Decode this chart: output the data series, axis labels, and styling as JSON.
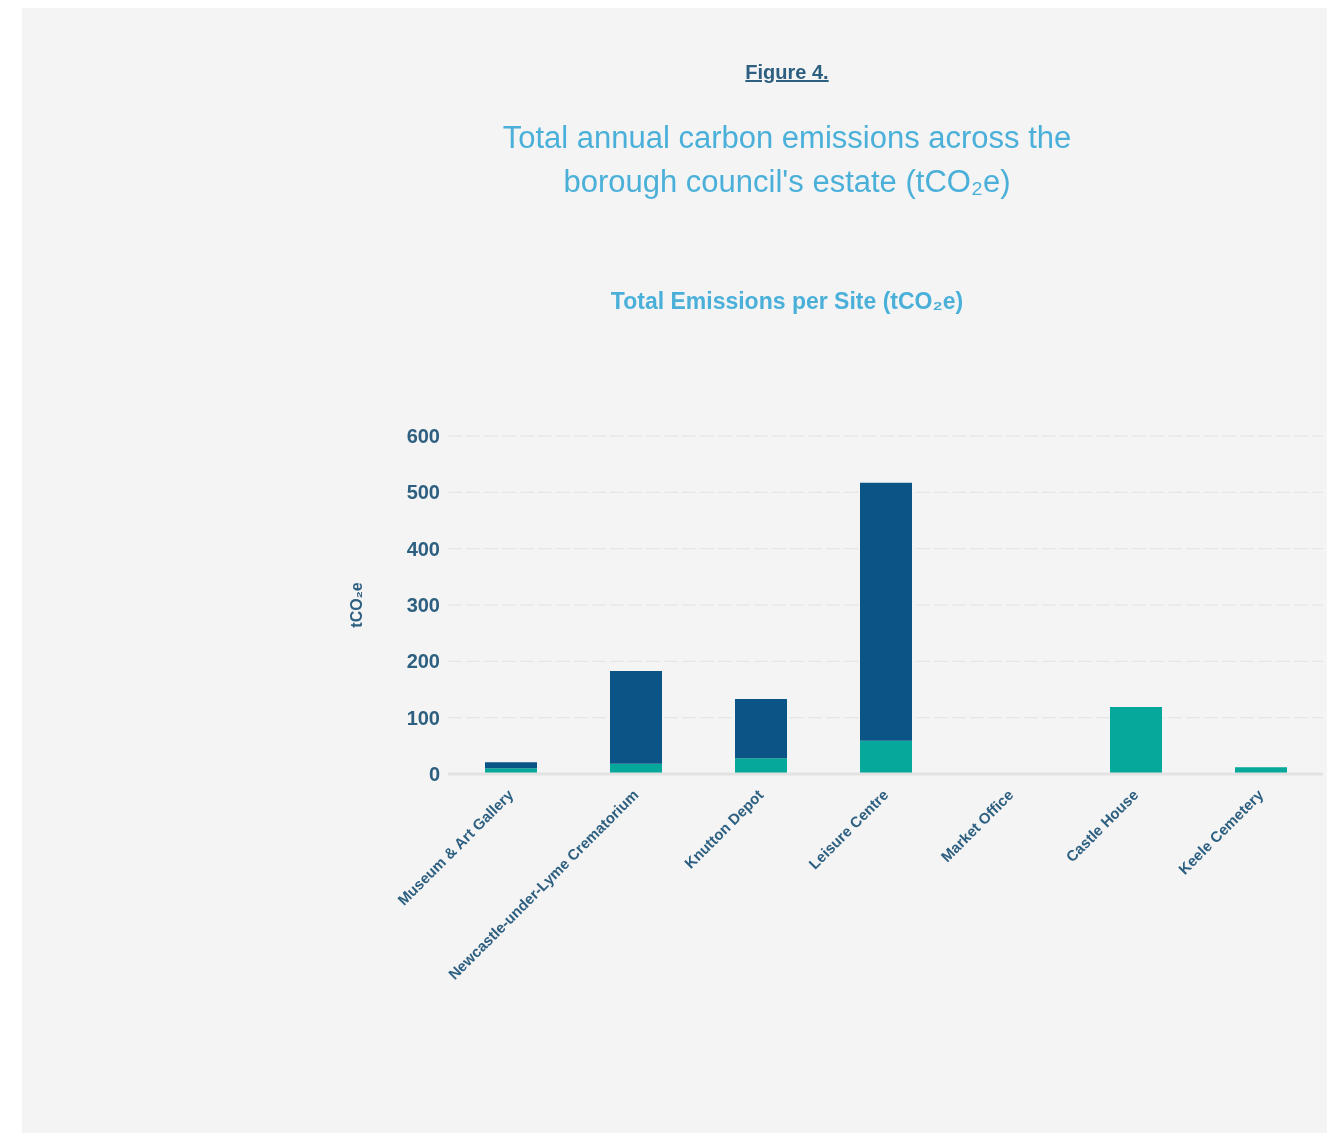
{
  "chart_data": {
    "type": "bar",
    "title": "Total annual carbon emissions across the borough council's estate (tCO₂e)",
    "subtitle": "Total Emissions per Site (tCO₂e)",
    "annotations": [
      "Figure 4."
    ],
    "ylabel": "tCO₂e",
    "categories": [
      "Museum & Art Gallery",
      "Newcastle-under-Lyme Crematorium",
      "Knutton Depot",
      "Leisure Centre",
      "Market Office",
      "Castle House",
      "Keele Cemetery"
    ],
    "series": [
      {
        "color": "#05a89a",
        "values": [
          10,
          18,
          28,
          59,
          0,
          119,
          12
        ]
      },
      {
        "color": "#0a5585",
        "values": [
          11,
          165,
          105,
          458,
          0,
          0,
          0
        ]
      }
    ],
    "stacked": true,
    "ylim": [
      0,
      600
    ],
    "yticks": [
      0,
      100,
      200,
      300,
      400,
      500,
      600
    ],
    "grid": "y",
    "legend": false
  }
}
